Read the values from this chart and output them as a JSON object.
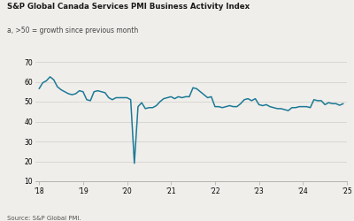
{
  "title": "S&P Global Canada Services PMI Business Activity Index",
  "subtitle": "a, >50 = growth since previous month",
  "source": "Source: S&P Global PMI.",
  "line_color": "#1c7a96",
  "background_color": "#f0eeeb",
  "ylim": [
    10,
    70
  ],
  "yticks": [
    10,
    20,
    30,
    40,
    50,
    60,
    70
  ],
  "xtick_labels": [
    "'18",
    "'19",
    "'20",
    "'21",
    "'22",
    "'23",
    "'24",
    "'25"
  ],
  "values": [
    56.5,
    59.5,
    60.5,
    62.5,
    61.0,
    57.5,
    56.0,
    55.0,
    54.0,
    53.5,
    54.0,
    55.5,
    55.0,
    51.0,
    50.5,
    55.0,
    55.5,
    55.0,
    54.5,
    52.0,
    51.0,
    52.0,
    52.0,
    52.0,
    52.0,
    51.0,
    19.0,
    47.5,
    49.5,
    46.5,
    47.0,
    47.0,
    48.0,
    50.0,
    51.5,
    52.0,
    52.5,
    51.5,
    52.5,
    52.0,
    52.5,
    52.5,
    57.0,
    56.5,
    55.0,
    53.5,
    52.0,
    52.5,
    47.5,
    47.5,
    47.0,
    47.5,
    48.0,
    47.5,
    47.5,
    49.0,
    51.0,
    51.5,
    50.5,
    51.5,
    48.5,
    48.0,
    48.5,
    47.5,
    47.0,
    46.5,
    46.5,
    46.0,
    45.5,
    47.0,
    47.0,
    47.5,
    47.5,
    47.5,
    47.0,
    51.0,
    50.5,
    50.5,
    48.5,
    49.5,
    49.0,
    49.0,
    48.2,
    49.0
  ]
}
